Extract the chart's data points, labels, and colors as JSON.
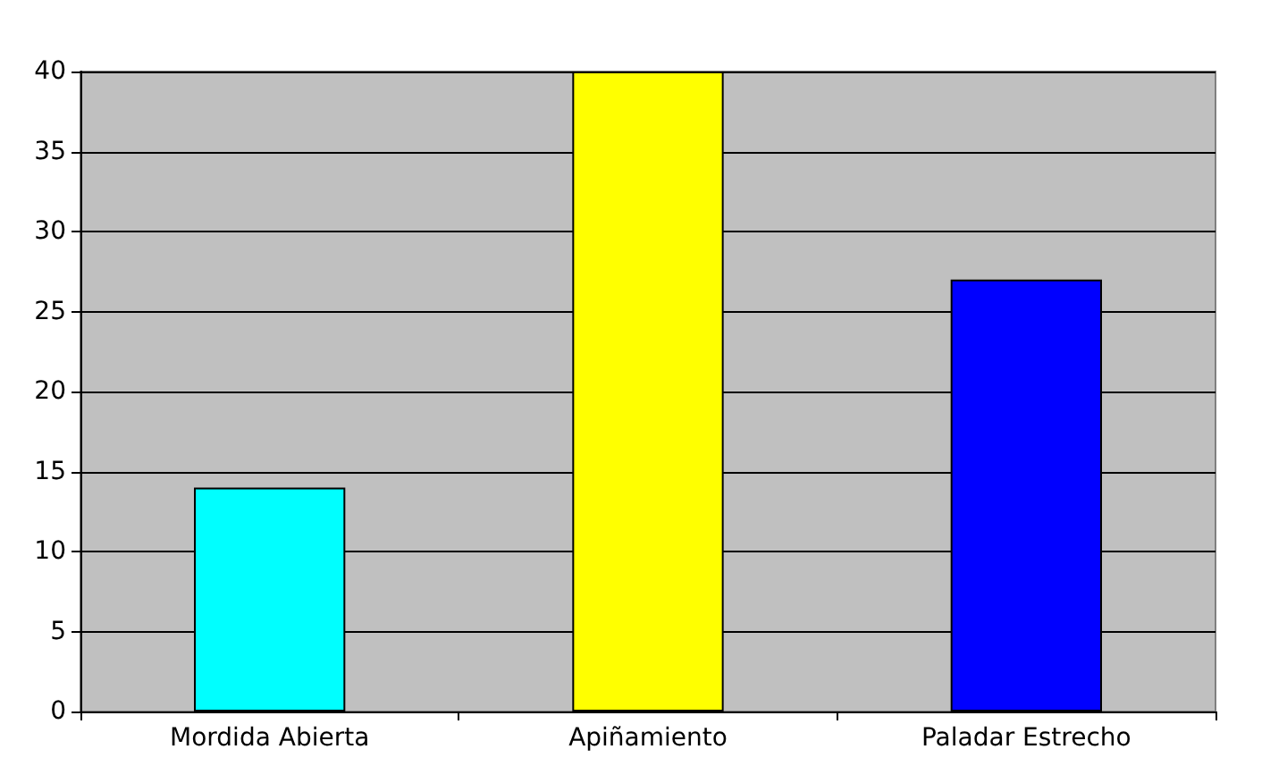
{
  "chart_data": {
    "type": "bar",
    "categories": [
      "Mordida Abierta",
      "Apiñamiento",
      "Paladar Estrecho"
    ],
    "values": [
      14,
      40,
      27
    ],
    "colors": [
      "#00ffff",
      "#ffff00",
      "#0000ff"
    ],
    "ylim": [
      0,
      40
    ],
    "yticks": [
      0,
      5,
      10,
      15,
      20,
      25,
      30,
      35,
      40
    ],
    "grid": "y"
  }
}
